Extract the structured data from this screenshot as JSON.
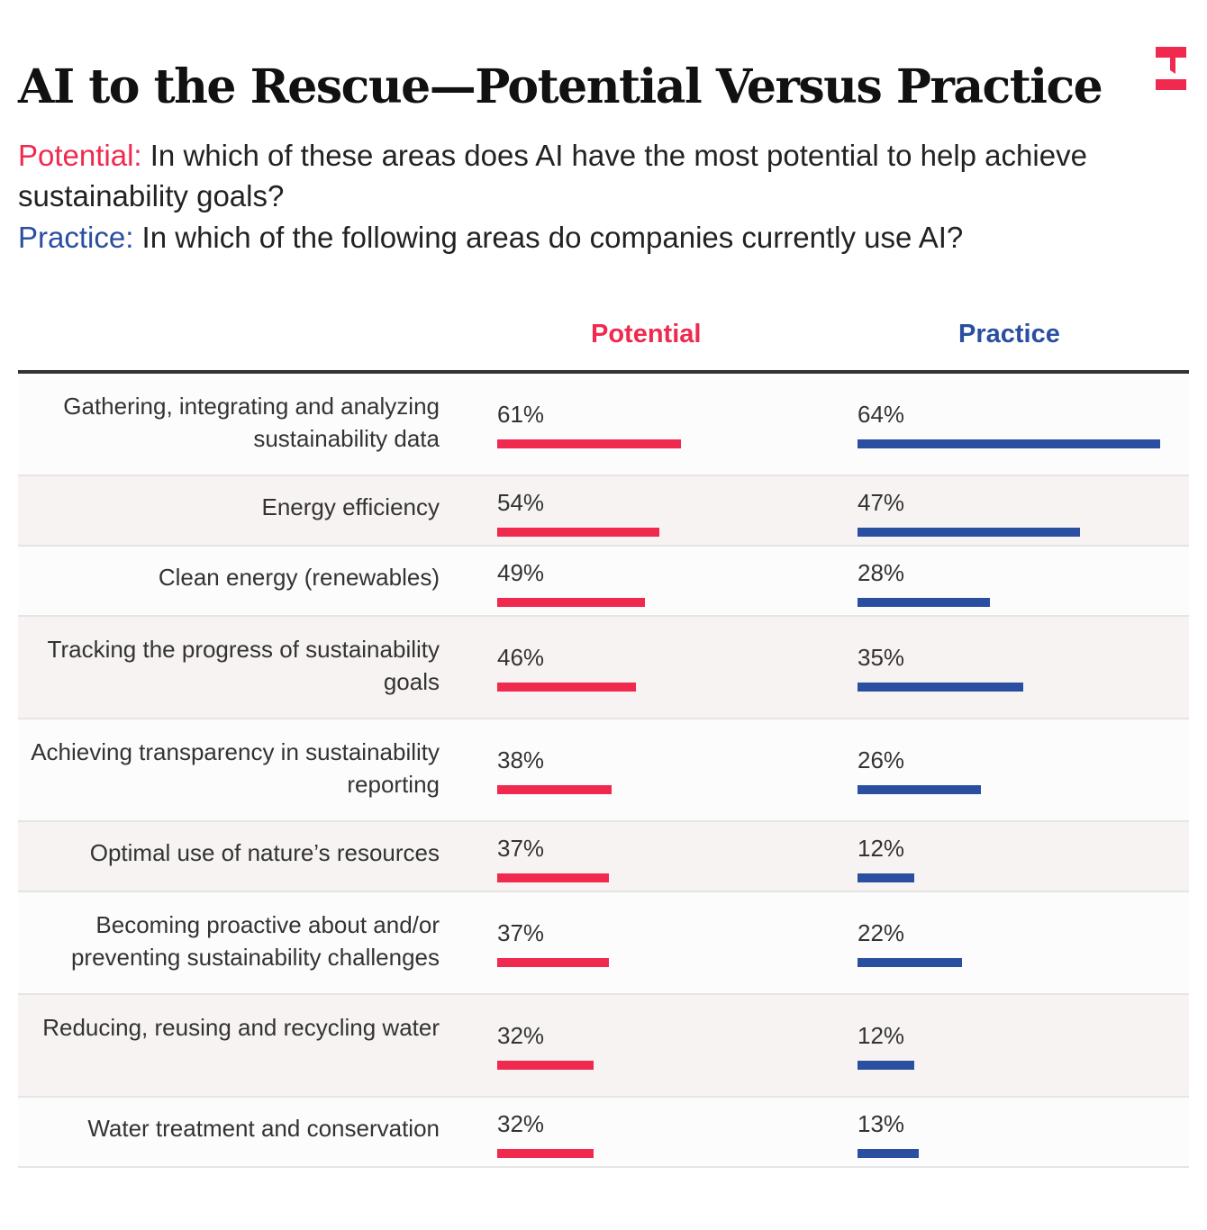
{
  "title": "AI to the Rescue—Potential Versus Practice",
  "subtitle": {
    "potential_label": "Potential:",
    "potential_q": "In which of these areas does AI have the most potential to help achieve sustainability goals?",
    "practice_label": "Practice:",
    "practice_q": "In which of the following areas do companies currently use AI?"
  },
  "colors": {
    "potential": "#f0294f",
    "practice": "#2b4fa0"
  },
  "chart_data": {
    "type": "bar",
    "title": "AI to the Rescue—Potential Versus Practice",
    "series_names": [
      "Potential",
      "Practice"
    ],
    "categories": [
      "Gathering, integrating and analyzing sustainability data",
      "Energy efficiency",
      "Clean energy (renewables)",
      "Tracking the progress of sustainability goals",
      "Achieving transparency in sustainability reporting",
      "Optimal use of nature’s resources",
      "Becoming proactive about and/or preventing sustainability challenges",
      "Reducing, reusing and recycling water",
      "Water treatment and conservation"
    ],
    "series": [
      {
        "name": "Potential",
        "values": [
          61,
          54,
          49,
          46,
          38,
          37,
          37,
          32,
          32
        ]
      },
      {
        "name": "Practice",
        "values": [
          64,
          47,
          28,
          35,
          26,
          12,
          22,
          12,
          13
        ]
      }
    ],
    "unit": "%"
  }
}
